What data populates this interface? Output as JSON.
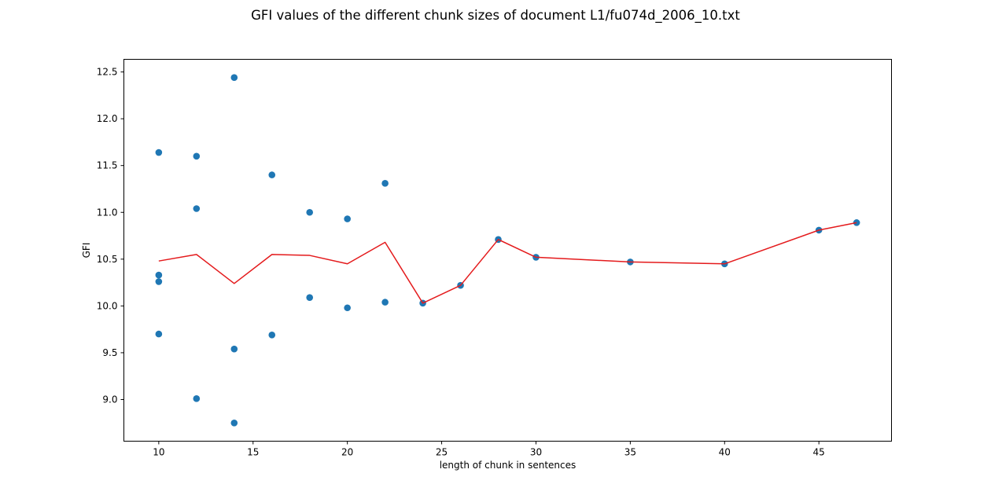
{
  "chart_data": {
    "type": "scatter",
    "title": "GFI values of the different chunk sizes of document L1/fu074d_2006_10.txt",
    "xlabel": "length of chunk in sentences",
    "ylabel": "GFI",
    "xlim": [
      8.15,
      48.85
    ],
    "ylim": [
      8.555,
      12.635
    ],
    "xticks": [
      10,
      15,
      20,
      25,
      30,
      35,
      40,
      45
    ],
    "yticks": [
      9.0,
      9.5,
      10.0,
      10.5,
      11.0,
      11.5,
      12.0,
      12.5
    ],
    "xtick_labels": [
      "10",
      "15",
      "20",
      "25",
      "30",
      "35",
      "40",
      "45"
    ],
    "ytick_labels": [
      "9.0",
      "9.5",
      "10.0",
      "10.5",
      "11.0",
      "11.5",
      "12.0",
      "12.5"
    ],
    "grid": false,
    "legend": "none",
    "series": [
      {
        "kind": "scatter",
        "color": "#1f77b4",
        "points": [
          [
            10,
            11.64
          ],
          [
            10,
            10.33
          ],
          [
            10,
            10.26
          ],
          [
            10,
            9.7
          ],
          [
            12,
            11.6
          ],
          [
            12,
            11.04
          ],
          [
            12,
            9.01
          ],
          [
            14,
            12.44
          ],
          [
            14,
            9.54
          ],
          [
            14,
            8.75
          ],
          [
            16,
            11.4
          ],
          [
            16,
            9.69
          ],
          [
            18,
            11.0
          ],
          [
            18,
            10.09
          ],
          [
            20,
            10.93
          ],
          [
            20,
            9.98
          ],
          [
            22,
            11.31
          ],
          [
            22,
            10.04
          ],
          [
            24,
            10.03
          ],
          [
            26,
            10.22
          ],
          [
            28,
            10.71
          ],
          [
            30,
            10.52
          ],
          [
            35,
            10.47
          ],
          [
            40,
            10.45
          ],
          [
            45,
            10.81
          ],
          [
            47,
            10.89
          ]
        ]
      },
      {
        "kind": "line",
        "color": "#e41a1c",
        "x": [
          10,
          12,
          14,
          16,
          18,
          20,
          22,
          24,
          26,
          28,
          30,
          35,
          40,
          45,
          47
        ],
        "y": [
          10.48,
          10.55,
          10.24,
          10.55,
          10.54,
          10.45,
          10.68,
          10.03,
          10.22,
          10.71,
          10.52,
          10.47,
          10.45,
          10.81,
          10.89
        ]
      }
    ]
  }
}
